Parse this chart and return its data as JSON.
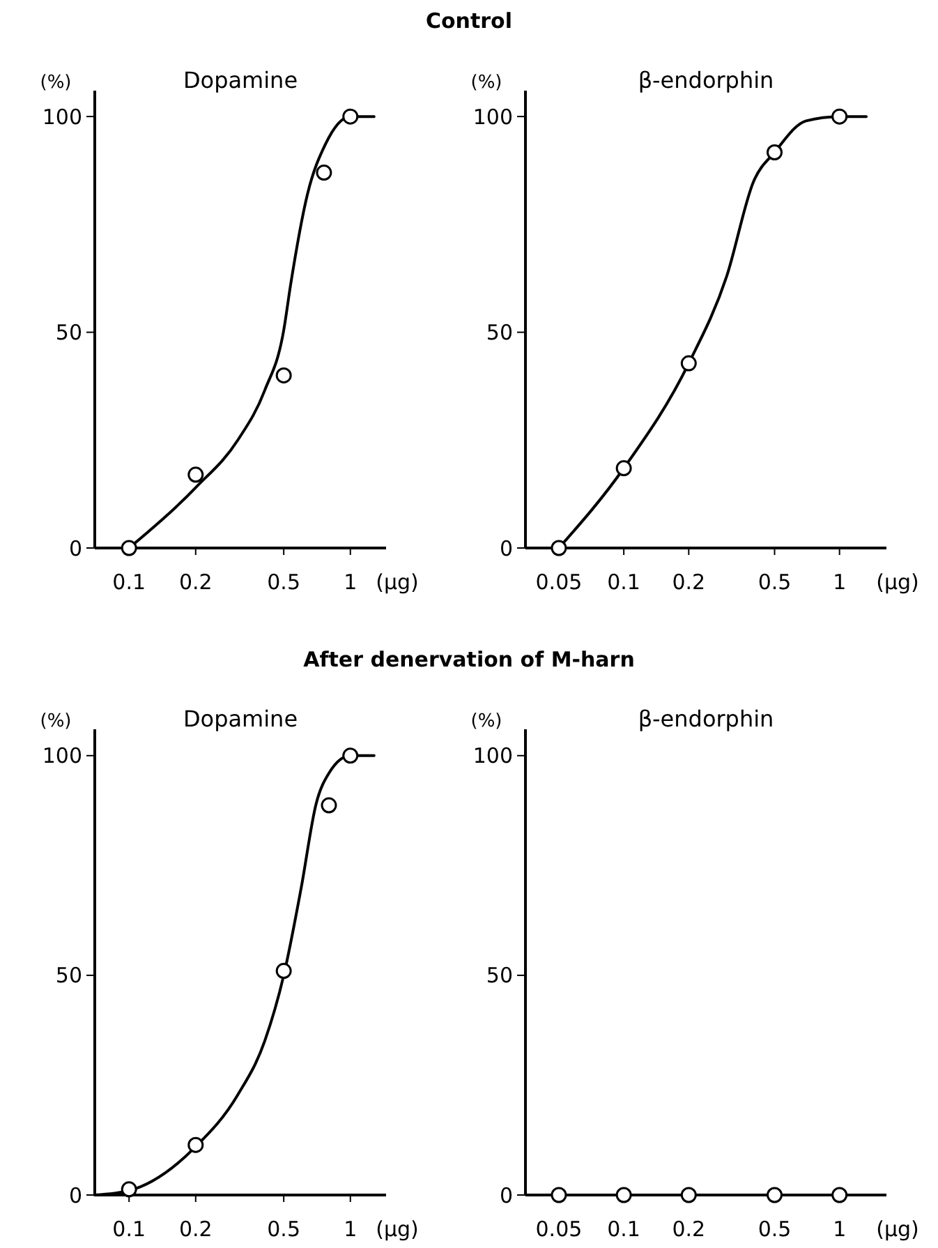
{
  "chart_data": [
    {
      "type": "other",
      "title": "Control"
    },
    {
      "type": "scatter",
      "subtitle": "Dopamine",
      "ylabel": "(%)",
      "xlabel": "(μg)",
      "log": "x",
      "xlim": [
        0.07,
        1.45
      ],
      "xticks": [
        0.1,
        0.2,
        0.5,
        1
      ],
      "ylim": [
        0,
        106
      ],
      "yticks": [
        0,
        50,
        100
      ],
      "series": [
        {
          "type": "line",
          "marker": "none",
          "color": "#000000",
          "x": [
            0.1,
            0.2,
            0.31,
            0.41,
            0.5,
            0.537,
            0.64,
            0.77,
            1,
            1.28
          ],
          "values": [
            0,
            14,
            25,
            36.5,
            50.5,
            61,
            82,
            93.5,
            100,
            100
          ]
        },
        {
          "type": "scatter",
          "marker": "circle",
          "color": "#000000",
          "x": [
            0.1,
            0.2,
            0.5,
            0.76,
            1
          ],
          "values": [
            0,
            17,
            40,
            87,
            100
          ]
        }
      ]
    },
    {
      "type": "scatter",
      "subtitle": "β-endorphin",
      "ylabel": "(%)",
      "xlabel": "(μg)",
      "log": "x",
      "xlim": [
        0.035,
        1.65
      ],
      "xticks": [
        0.05,
        0.1,
        0.2,
        0.5,
        1
      ],
      "ylim": [
        0,
        106
      ],
      "yticks": [
        0,
        50,
        100
      ],
      "series": [
        {
          "type": "line",
          "marker": "none",
          "color": "#000000",
          "x": [
            0.05,
            0.1,
            0.2,
            0.3,
            0.4,
            0.5,
            0.7,
            1,
            1.33
          ],
          "values": [
            0,
            18.5,
            42.8,
            63,
            85,
            91.7,
            99,
            100,
            100
          ]
        },
        {
          "type": "scatter",
          "marker": "circle",
          "color": "#000000",
          "x": [
            0.05,
            0.1,
            0.2,
            0.5,
            1
          ],
          "values": [
            0,
            18.5,
            42.8,
            91.7,
            100
          ]
        }
      ]
    },
    {
      "type": "other",
      "title": "After denervation of M-harn"
    },
    {
      "type": "scatter",
      "subtitle": "Dopamine",
      "ylabel": "(%)",
      "xlabel": "(μg)",
      "log": "x",
      "xlim": [
        0.07,
        1.45
      ],
      "xticks": [
        0.1,
        0.2,
        0.5,
        1
      ],
      "ylim": [
        0,
        106
      ],
      "yticks": [
        0,
        50,
        100
      ],
      "series": [
        {
          "type": "line",
          "marker": "none",
          "color": "#000000",
          "x": [
            0.07,
            0.1,
            0.2,
            0.31,
            0.41,
            0.5,
            0.6,
            0.7,
            0.8,
            1,
            1.28
          ],
          "values": [
            0,
            1,
            11,
            22.8,
            35,
            50,
            70,
            89,
            96,
            100,
            100
          ]
        },
        {
          "type": "scatter",
          "marker": "circle",
          "color": "#000000",
          "x": [
            0.1,
            0.2,
            0.5,
            0.8,
            1
          ],
          "values": [
            1.3,
            11.4,
            51,
            88.7,
            100
          ]
        }
      ]
    },
    {
      "type": "scatter",
      "subtitle": "β-endorphin",
      "ylabel": "(%)",
      "xlabel": "(μg)",
      "log": "x",
      "xlim": [
        0.035,
        1.65
      ],
      "xticks": [
        0.05,
        0.1,
        0.2,
        0.5,
        1
      ],
      "ylim": [
        0,
        106
      ],
      "yticks": [
        0,
        50,
        100
      ],
      "series": [
        {
          "type": "scatter",
          "marker": "circle",
          "color": "#000000",
          "x": [
            0.05,
            0.1,
            0.2,
            0.5,
            1
          ],
          "values": [
            0,
            0,
            0,
            0,
            0
          ]
        }
      ]
    }
  ]
}
